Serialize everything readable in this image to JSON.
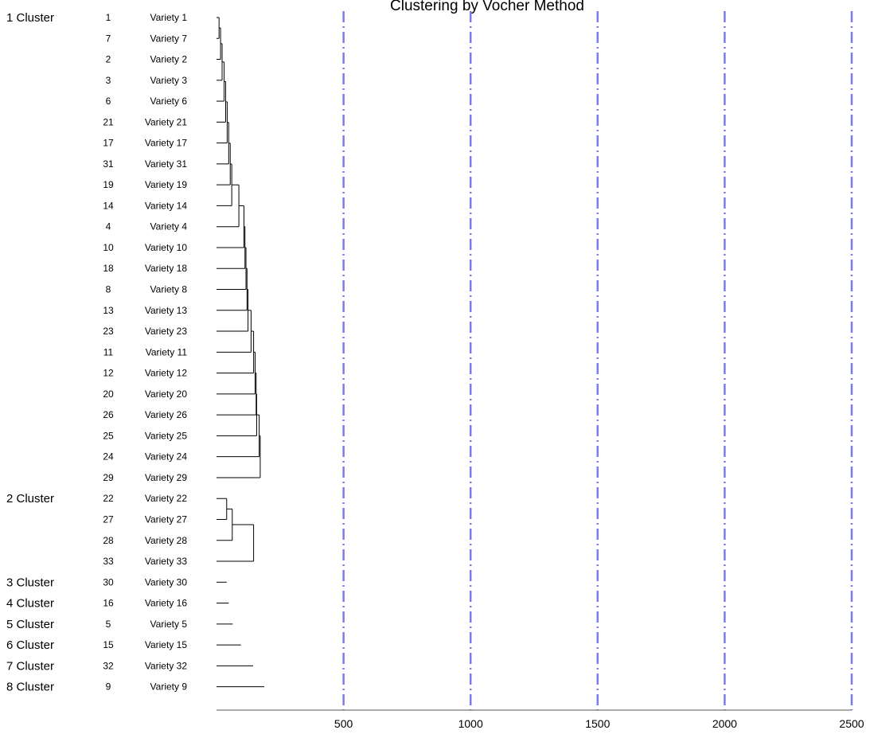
{
  "chart_data": {
    "type": "dendrogram",
    "title": "Clustering by Vocher Method",
    "xlim": [
      0,
      2500
    ],
    "x_ticks": [
      500,
      1000,
      1500,
      2000,
      2500
    ],
    "reference_lines": [
      500,
      1000,
      1500,
      2000,
      2500
    ],
    "reference_line_color": "#7b7bea",
    "leaves": [
      {
        "index": "1",
        "label": "Variety 1",
        "cluster": "1 Cluster"
      },
      {
        "index": "7",
        "label": "Variety 7"
      },
      {
        "index": "2",
        "label": "Variety 2"
      },
      {
        "index": "3",
        "label": "Variety 3"
      },
      {
        "index": "6",
        "label": "Variety 6"
      },
      {
        "index": "21",
        "label": "Variety 21"
      },
      {
        "index": "17",
        "label": "Variety 17"
      },
      {
        "index": "31",
        "label": "Variety 31"
      },
      {
        "index": "19",
        "label": "Variety 19"
      },
      {
        "index": "14",
        "label": "Variety 14"
      },
      {
        "index": "4",
        "label": "Variety 4"
      },
      {
        "index": "10",
        "label": "Variety 10"
      },
      {
        "index": "18",
        "label": "Variety 18"
      },
      {
        "index": "8",
        "label": "Variety 8"
      },
      {
        "index": "13",
        "label": "Variety 13"
      },
      {
        "index": "23",
        "label": "Variety 23"
      },
      {
        "index": "11",
        "label": "Variety 11"
      },
      {
        "index": "12",
        "label": "Variety 12"
      },
      {
        "index": "20",
        "label": "Variety 20"
      },
      {
        "index": "26",
        "label": "Variety 26"
      },
      {
        "index": "25",
        "label": "Variety 25"
      },
      {
        "index": "24",
        "label": "Variety 24"
      },
      {
        "index": "29",
        "label": "Variety 29"
      },
      {
        "index": "22",
        "label": "Variety 22",
        "cluster": "2 Cluster"
      },
      {
        "index": "27",
        "label": "Variety 27"
      },
      {
        "index": "28",
        "label": "Variety 28"
      },
      {
        "index": "33",
        "label": "Variety 33"
      },
      {
        "index": "30",
        "label": "Variety 30",
        "cluster": "3 Cluster"
      },
      {
        "index": "16",
        "label": "Variety 16",
        "cluster": "4 Cluster"
      },
      {
        "index": "5",
        "label": "Variety 5",
        "cluster": "5 Cluster"
      },
      {
        "index": "15",
        "label": "Variety 15",
        "cluster": "6 Cluster"
      },
      {
        "index": "32",
        "label": "Variety 32",
        "cluster": "7 Cluster"
      },
      {
        "index": "9",
        "label": "Variety 9",
        "cluster": "8 Cluster"
      }
    ],
    "merges": [
      {
        "a": 0,
        "b": 1,
        "height": 10
      },
      {
        "a": 2,
        "b": -1,
        "height": 16
      },
      {
        "a": 3,
        "b": -2,
        "height": 22
      },
      {
        "a": 4,
        "b": -3,
        "height": 30
      },
      {
        "a": 5,
        "b": -4,
        "height": 36
      },
      {
        "a": 6,
        "b": -5,
        "height": 42
      },
      {
        "a": 7,
        "b": -6,
        "height": 48
      },
      {
        "a": 8,
        "b": -7,
        "height": 54
      },
      {
        "a": 9,
        "b": -8,
        "height": 60
      },
      {
        "a": 10,
        "b": -9,
        "height": 88
      },
      {
        "a": 11,
        "b": -10,
        "height": 108
      },
      {
        "a": 12,
        "b": -11,
        "height": 112
      },
      {
        "a": 13,
        "b": -12,
        "height": 116
      },
      {
        "a": 14,
        "b": -13,
        "height": 120
      },
      {
        "a": 15,
        "b": -14,
        "height": 124
      },
      {
        "a": 16,
        "b": -15,
        "height": 136
      },
      {
        "a": 17,
        "b": -16,
        "height": 146
      },
      {
        "a": 18,
        "b": -17,
        "height": 152
      },
      {
        "a": 19,
        "b": -18,
        "height": 156
      },
      {
        "a": 20,
        "b": -19,
        "height": 158
      },
      {
        "a": 21,
        "b": -20,
        "height": 168
      },
      {
        "a": 22,
        "b": -21,
        "height": 172
      },
      {
        "a": 23,
        "b": 24,
        "height": 40
      },
      {
        "a": 25,
        "b": -23,
        "height": 62
      },
      {
        "a": 26,
        "b": -24,
        "height": 146
      }
    ],
    "singleton_lengths": {
      "27": 40,
      "28": 48,
      "29": 64,
      "30": 96,
      "31": 144,
      "32": 188
    }
  }
}
